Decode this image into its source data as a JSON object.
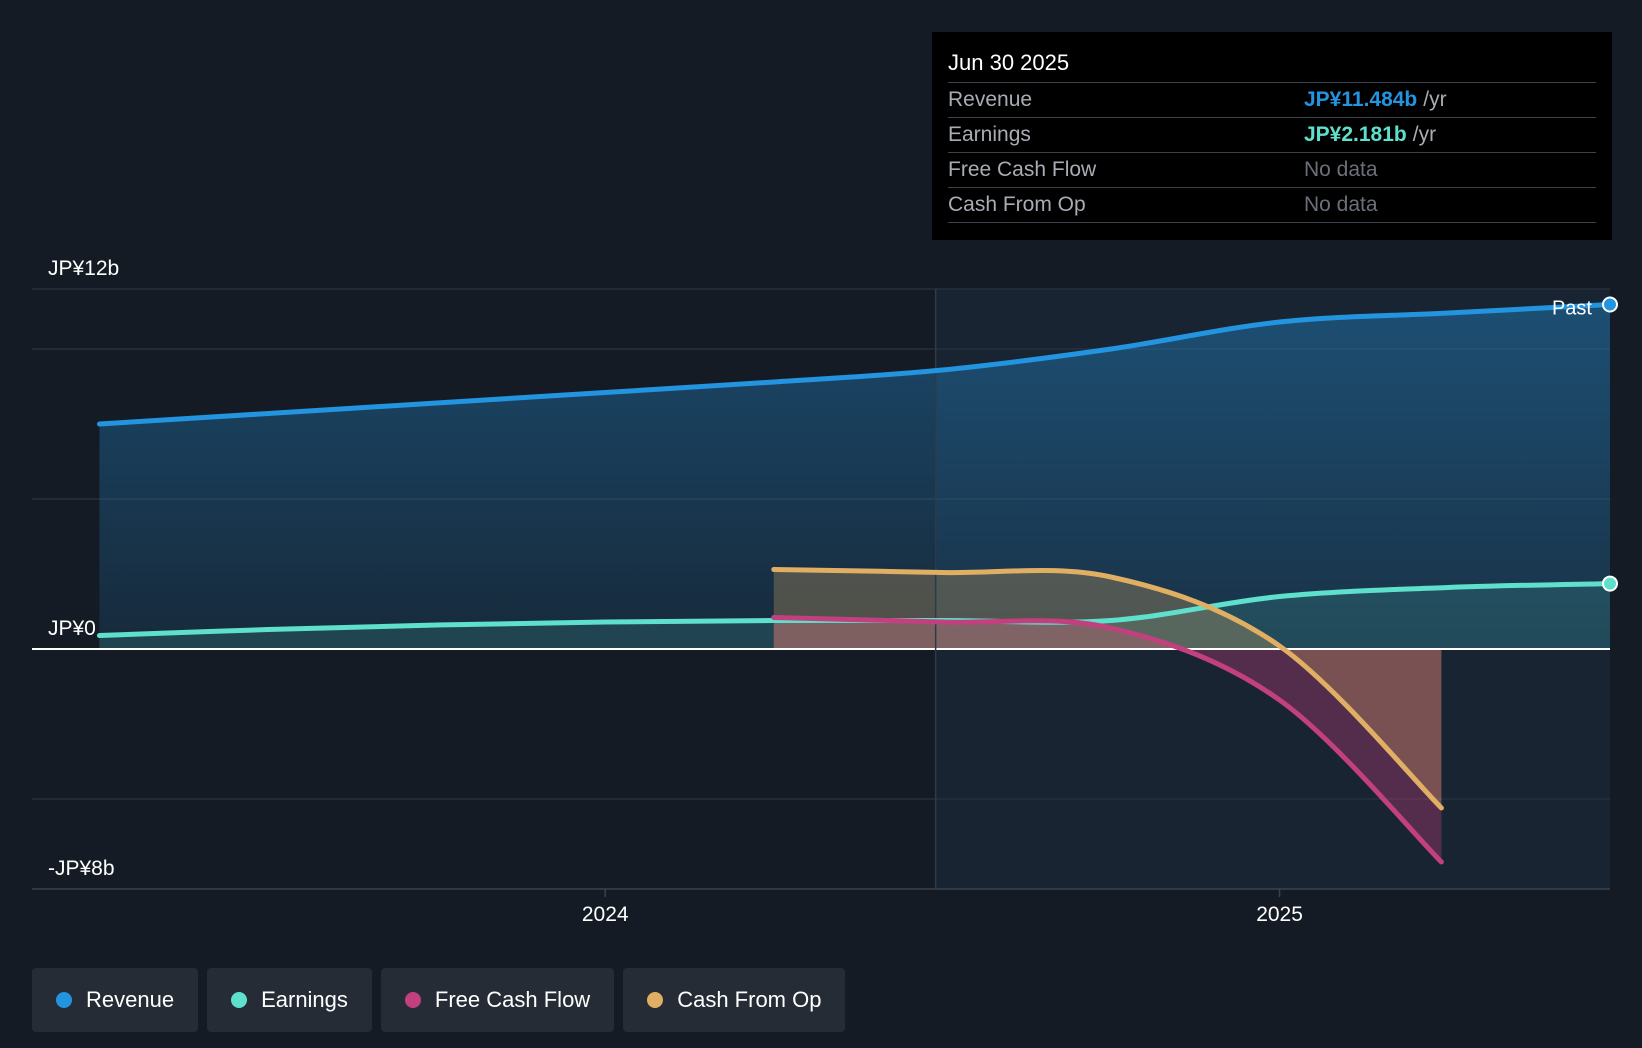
{
  "chart_data": {
    "type": "line",
    "title": "",
    "y_unit": "JP¥ b",
    "ylim": [
      -8,
      12
    ],
    "y_tick_labels": [
      {
        "value": 12,
        "label": "JP¥12b"
      },
      {
        "value": 0,
        "label": "JP¥0"
      },
      {
        "value": -8,
        "label": "-JP¥8b"
      }
    ],
    "x_tick_labels": [
      {
        "value": 2024.0,
        "label": "2024"
      },
      {
        "value": 2025.0,
        "label": "2025"
      }
    ],
    "xlim": [
      2023.15,
      2025.49
    ],
    "past_marker_x": 2024.49,
    "past_label": "Past",
    "series": [
      {
        "name": "Revenue",
        "color": "#2394df",
        "x": [
          2023.25,
          2023.5,
          2023.75,
          2024.0,
          2024.25,
          2024.5,
          2024.75,
          2025.0,
          2025.25,
          2025.49
        ],
        "values": [
          7.5,
          7.85,
          8.2,
          8.55,
          8.9,
          9.3,
          10.0,
          10.9,
          11.2,
          11.484
        ]
      },
      {
        "name": "Earnings",
        "color": "#5ee0cc",
        "x": [
          2023.25,
          2023.5,
          2023.75,
          2024.0,
          2024.25,
          2024.5,
          2024.75,
          2025.0,
          2025.25,
          2025.49
        ],
        "values": [
          0.45,
          0.65,
          0.8,
          0.9,
          0.95,
          0.95,
          0.95,
          1.75,
          2.05,
          2.181
        ]
      },
      {
        "name": "Free Cash Flow",
        "color": "#c2407e",
        "x": [
          2024.25,
          2024.5,
          2024.75,
          2025.0,
          2025.24
        ],
        "values": [
          1.05,
          0.9,
          0.7,
          -1.7,
          -7.1
        ]
      },
      {
        "name": "Cash From Op",
        "color": "#e1af63",
        "x": [
          2024.25,
          2024.5,
          2024.75,
          2025.0,
          2025.24
        ],
        "values": [
          2.65,
          2.55,
          2.4,
          0.1,
          -5.3
        ]
      }
    ]
  },
  "tooltip": {
    "date": "Jun 30 2025",
    "rows": [
      {
        "label": "Revenue",
        "value": "JP¥11.484b",
        "unit": "/yr",
        "color": "#2394df"
      },
      {
        "label": "Earnings",
        "value": "JP¥2.181b",
        "unit": "/yr",
        "color": "#5ee0cc"
      },
      {
        "label": "Free Cash Flow",
        "value": "No data"
      },
      {
        "label": "Cash From Op",
        "value": "No data"
      }
    ]
  },
  "legend": [
    {
      "label": "Revenue",
      "color": "#2394df"
    },
    {
      "label": "Earnings",
      "color": "#5ee0cc"
    },
    {
      "label": "Free Cash Flow",
      "color": "#c2407e"
    },
    {
      "label": "Cash From Op",
      "color": "#e1af63"
    }
  ]
}
